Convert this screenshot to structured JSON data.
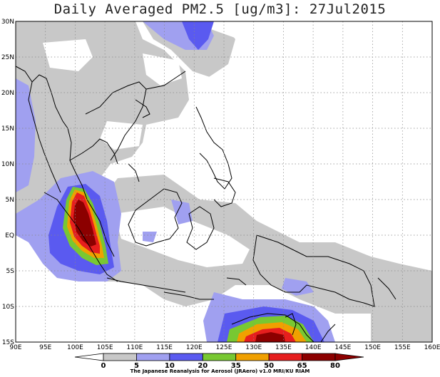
{
  "title": "Daily Averaged PM2.5 [ug/m3]: 27Jul2015",
  "map": {
    "projection": "lat-lon",
    "lon_range": [
      90,
      160
    ],
    "lat_range": [
      -15,
      30
    ],
    "lon_tick_labels": [
      "90E",
      "95E",
      "100E",
      "105E",
      "110E",
      "115E",
      "120E",
      "125E",
      "130E",
      "135E",
      "140E",
      "145E",
      "150E",
      "155E",
      "160E"
    ],
    "lat_tick_labels": [
      "15S",
      "10S",
      "5S",
      "EQ",
      "5N",
      "10N",
      "15N",
      "20N",
      "25N",
      "30N"
    ],
    "grid": "dotted",
    "colors": {
      "c0_5": "#ffffff",
      "c5_10": "#c8c8c8",
      "c10_20": "#a0a0f0",
      "c20_35": "#5a5af0",
      "c35_50": "#78c832",
      "c50_65": "#f0a000",
      "c65_80": "#e61e1e",
      "c80_plus": "#8c0000",
      "coast": "#000000"
    }
  },
  "colorbar": {
    "labels": [
      "0",
      "5",
      "10",
      "20",
      "35",
      "50",
      "65",
      "80"
    ],
    "colors": [
      "#ffffff",
      "#c8c8c8",
      "#a0a0f0",
      "#5a5af0",
      "#78c832",
      "#f0a000",
      "#e61e1e",
      "#8c0000"
    ]
  },
  "credit": "The Japanese Reanalysis for Aerosol (JRAero) v1.0 MRI/KU RIAM"
}
